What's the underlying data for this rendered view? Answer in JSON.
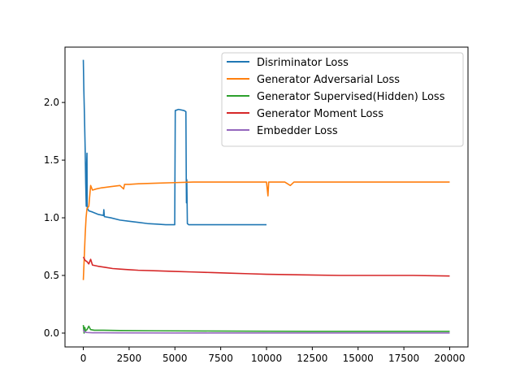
{
  "chart_data": {
    "type": "line",
    "title": "",
    "xlabel": "",
    "ylabel": "",
    "xlim": [
      -1000,
      21000
    ],
    "ylim": [
      -0.12,
      2.48
    ],
    "xticks": [
      0,
      2500,
      5000,
      7500,
      10000,
      12500,
      15000,
      17500,
      20000
    ],
    "yticks": [
      0.0,
      0.5,
      1.0,
      1.5,
      2.0
    ],
    "xtick_labels": [
      "0",
      "2500",
      "5000",
      "7500",
      "10000",
      "12500",
      "15000",
      "17500",
      "20000"
    ],
    "ytick_labels": [
      "0.0",
      "0.5",
      "1.0",
      "1.5",
      "2.0"
    ],
    "grid": false,
    "legend_position": "top-right",
    "series": [
      {
        "name": "Disriminator Loss",
        "color": "#1f77b4",
        "points": [
          [
            0,
            2.37
          ],
          [
            30,
            2.1
          ],
          [
            60,
            1.9
          ],
          [
            100,
            1.6
          ],
          [
            130,
            1.3
          ],
          [
            160,
            1.1
          ],
          [
            180,
            1.45
          ],
          [
            200,
            1.56
          ],
          [
            210,
            1.1
          ],
          [
            230,
            1.08
          ],
          [
            300,
            1.06
          ],
          [
            500,
            1.05
          ],
          [
            800,
            1.03
          ],
          [
            1100,
            1.02
          ],
          [
            1120,
            1.07
          ],
          [
            1150,
            1.01
          ],
          [
            1500,
            1.0
          ],
          [
            2000,
            0.98
          ],
          [
            2500,
            0.97
          ],
          [
            3000,
            0.96
          ],
          [
            3500,
            0.95
          ],
          [
            4000,
            0.945
          ],
          [
            4500,
            0.94
          ],
          [
            4990,
            0.94
          ],
          [
            5020,
            1.93
          ],
          [
            5200,
            1.94
          ],
          [
            5500,
            1.93
          ],
          [
            5600,
            1.92
          ],
          [
            5620,
            1.33
          ],
          [
            5630,
            1.13
          ],
          [
            5650,
            1.33
          ],
          [
            5680,
            0.95
          ],
          [
            5750,
            0.94
          ],
          [
            6500,
            0.94
          ],
          [
            8000,
            0.94
          ],
          [
            9000,
            0.94
          ],
          [
            10000,
            0.94
          ]
        ]
      },
      {
        "name": "Generator Adversarial Loss",
        "color": "#ff7f0e",
        "points": [
          [
            0,
            0.46
          ],
          [
            50,
            0.65
          ],
          [
            100,
            0.85
          ],
          [
            150,
            1.0
          ],
          [
            200,
            1.08
          ],
          [
            300,
            1.1
          ],
          [
            400,
            1.28
          ],
          [
            500,
            1.24
          ],
          [
            700,
            1.25
          ],
          [
            1000,
            1.26
          ],
          [
            1500,
            1.27
          ],
          [
            2000,
            1.28
          ],
          [
            2200,
            1.25
          ],
          [
            2250,
            1.29
          ],
          [
            2500,
            1.29
          ],
          [
            3000,
            1.295
          ],
          [
            4000,
            1.3
          ],
          [
            5000,
            1.305
          ],
          [
            6000,
            1.31
          ],
          [
            7000,
            1.31
          ],
          [
            8000,
            1.31
          ],
          [
            9000,
            1.31
          ],
          [
            10000,
            1.31
          ],
          [
            10080,
            1.19
          ],
          [
            10120,
            1.31
          ],
          [
            11000,
            1.31
          ],
          [
            11300,
            1.28
          ],
          [
            11500,
            1.31
          ],
          [
            12000,
            1.31
          ],
          [
            14000,
            1.31
          ],
          [
            16000,
            1.31
          ],
          [
            18000,
            1.31
          ],
          [
            20000,
            1.31
          ]
        ]
      },
      {
        "name": "Generator Supervised(Hidden) Loss",
        "color": "#2ca02c",
        "points": [
          [
            0,
            0.07
          ],
          [
            40,
            0.0
          ],
          [
            80,
            0.05
          ],
          [
            120,
            0.02
          ],
          [
            200,
            0.03
          ],
          [
            300,
            0.06
          ],
          [
            400,
            0.03
          ],
          [
            600,
            0.025
          ],
          [
            1000,
            0.025
          ],
          [
            2000,
            0.022
          ],
          [
            4000,
            0.02
          ],
          [
            7000,
            0.018
          ],
          [
            10000,
            0.016
          ],
          [
            14000,
            0.015
          ],
          [
            17000,
            0.015
          ],
          [
            20000,
            0.015
          ]
        ]
      },
      {
        "name": "Generator Moment Loss",
        "color": "#d62728",
        "points": [
          [
            0,
            0.66
          ],
          [
            100,
            0.63
          ],
          [
            200,
            0.62
          ],
          [
            300,
            0.6
          ],
          [
            400,
            0.64
          ],
          [
            500,
            0.59
          ],
          [
            800,
            0.58
          ],
          [
            1200,
            0.57
          ],
          [
            1600,
            0.56
          ],
          [
            2000,
            0.555
          ],
          [
            2500,
            0.55
          ],
          [
            3000,
            0.545
          ],
          [
            4000,
            0.54
          ],
          [
            5000,
            0.535
          ],
          [
            6000,
            0.53
          ],
          [
            7000,
            0.525
          ],
          [
            8000,
            0.52
          ],
          [
            9000,
            0.515
          ],
          [
            10000,
            0.51
          ],
          [
            12000,
            0.505
          ],
          [
            14000,
            0.5
          ],
          [
            16000,
            0.5
          ],
          [
            18000,
            0.5
          ],
          [
            20000,
            0.495
          ]
        ]
      },
      {
        "name": "Embedder Loss",
        "color": "#9467bd",
        "points": [
          [
            0,
            0.03
          ],
          [
            60,
            0.01
          ],
          [
            200,
            0.005
          ],
          [
            500,
            0.003
          ],
          [
            2000,
            0.002
          ],
          [
            5000,
            0.001
          ],
          [
            10000,
            0.001
          ],
          [
            15000,
            0.001
          ],
          [
            20000,
            0.001
          ]
        ]
      }
    ]
  }
}
